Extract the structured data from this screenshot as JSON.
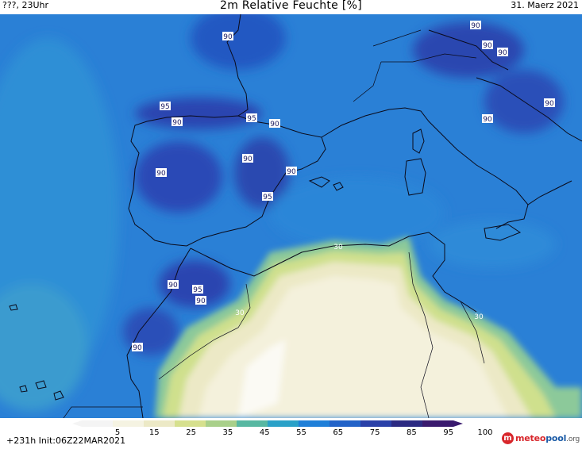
{
  "header": {
    "left": "???, 23Uhr",
    "title": "2m Relative Feuchte [%]",
    "date": "31. Maerz 2021"
  },
  "footer": {
    "init": "+231h  Init:06Z22MAR2021",
    "logo": {
      "part1": "meteo",
      "part2": "pool",
      "part3": ".org",
      "mark": "m"
    }
  },
  "legend": {
    "ticks": [
      "5",
      "15",
      "25",
      "35",
      "45",
      "55",
      "65",
      "75",
      "85",
      "95",
      "100"
    ],
    "colors": [
      "#f4f4f4",
      "#f5f3e2",
      "#ece9c6",
      "#d6e08e",
      "#a9d08a",
      "#58b8a2",
      "#2aa1c8",
      "#1f7fd8",
      "#2363c8",
      "#2a40a8",
      "#2c2a82",
      "#3a1a6e"
    ]
  },
  "contour_labels": [
    {
      "text": "90"
    },
    {
      "text": "90"
    },
    {
      "text": "90"
    },
    {
      "text": "90"
    },
    {
      "text": "95"
    },
    {
      "text": "90"
    },
    {
      "text": "95"
    },
    {
      "text": "90"
    },
    {
      "text": "90"
    },
    {
      "text": "90"
    },
    {
      "text": "90"
    },
    {
      "text": "90"
    },
    {
      "text": "90"
    },
    {
      "text": "95"
    },
    {
      "text": "30"
    },
    {
      "text": "90"
    },
    {
      "text": "95"
    },
    {
      "text": "90"
    },
    {
      "text": "30"
    },
    {
      "text": "90"
    },
    {
      "text": "30"
    }
  ]
}
